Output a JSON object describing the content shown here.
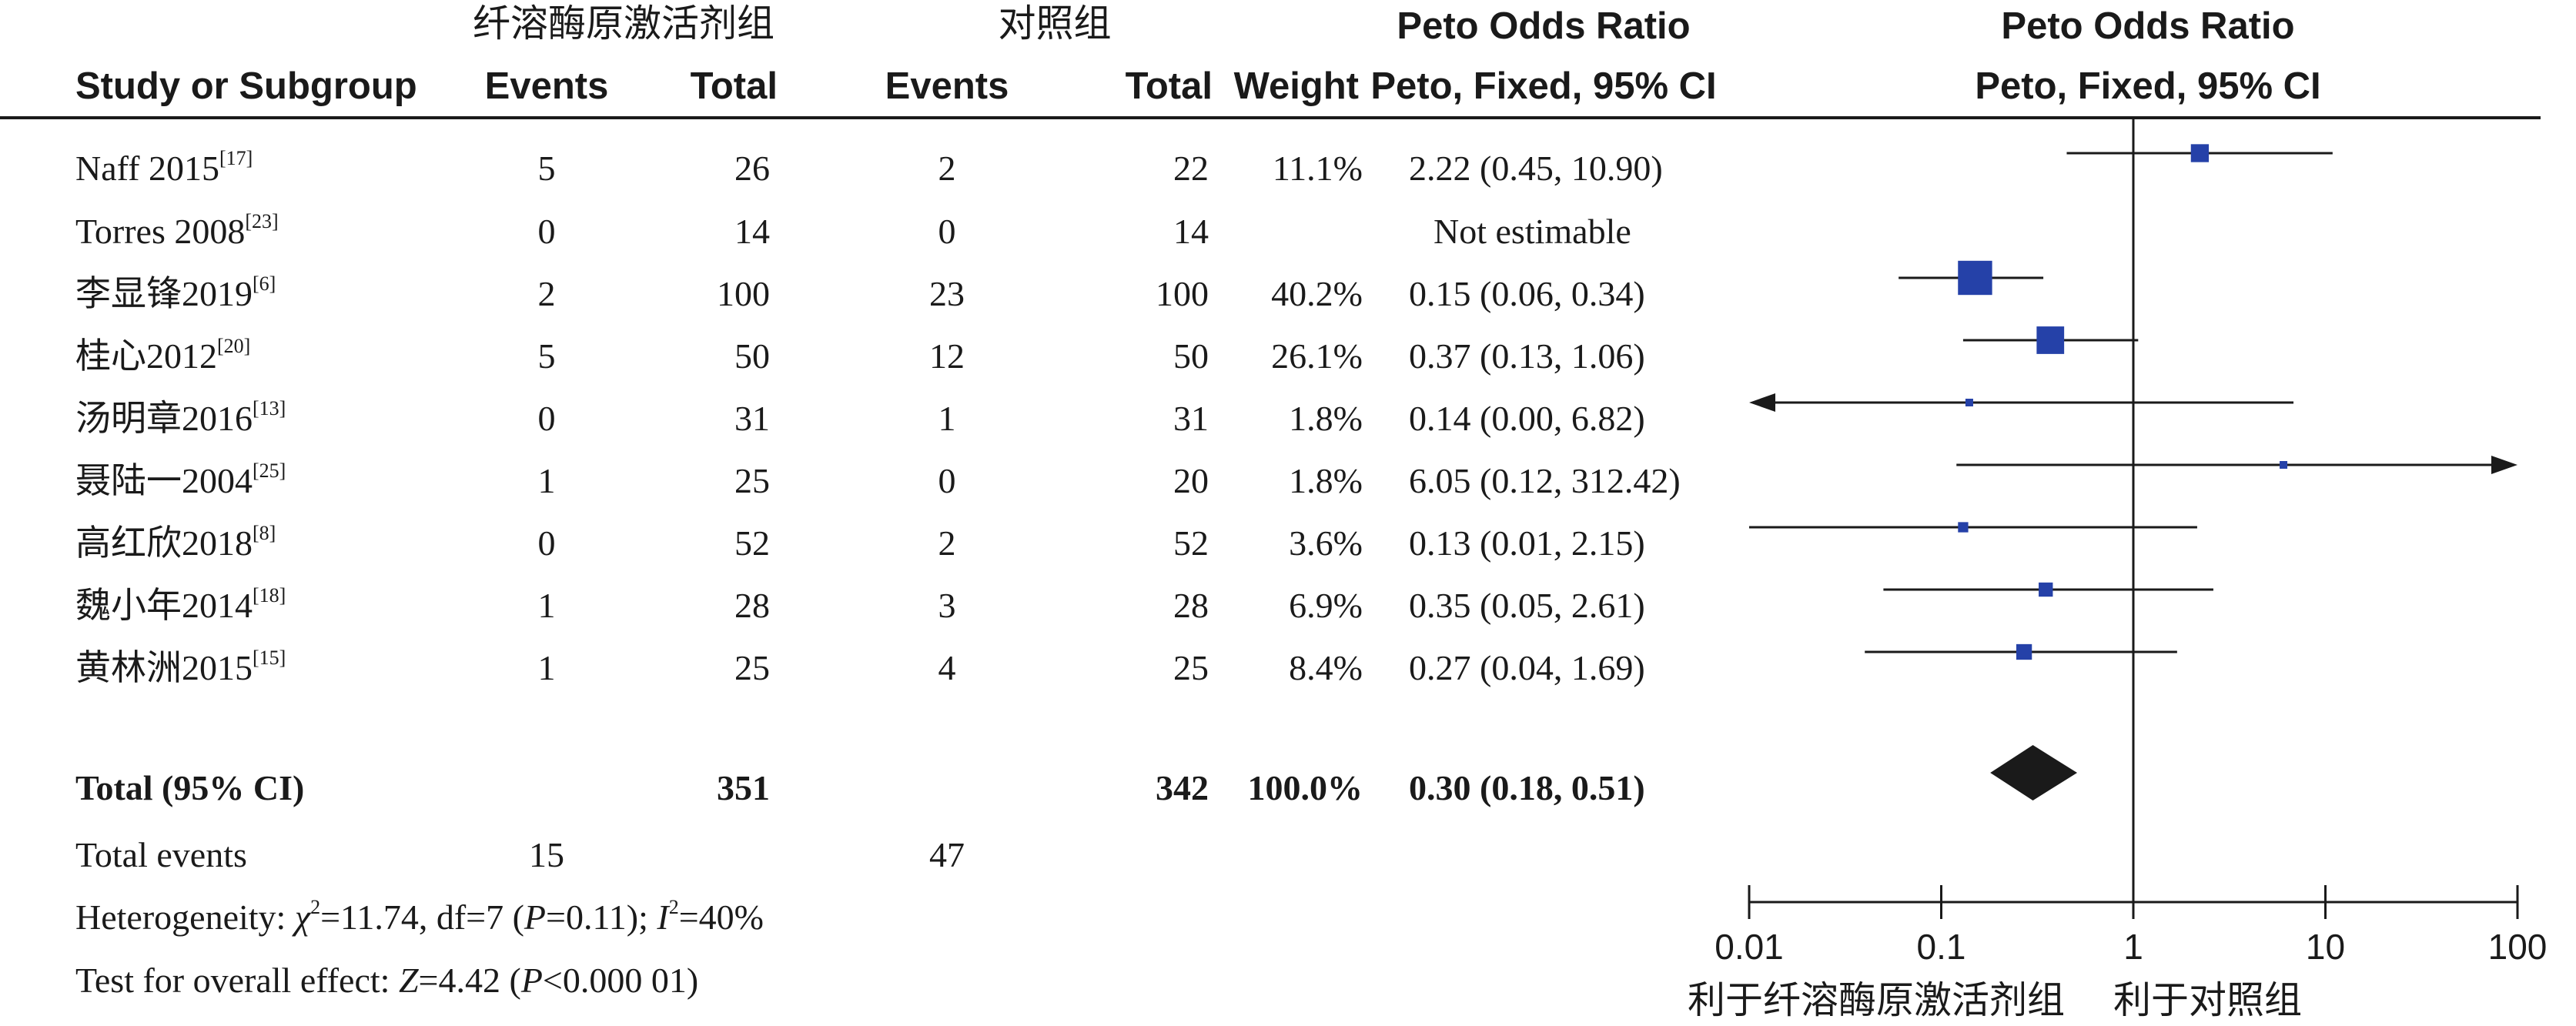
{
  "headers": {
    "group_exp": "纤溶酶原激活剂组",
    "group_ctrl": "对照组",
    "study": "Study or Subgroup",
    "events_exp": "Events",
    "total_exp": "Total",
    "events_ctrl": "Events",
    "total_ctrl": "Total",
    "weight": "Weight",
    "or_title": "Peto Odds Ratio",
    "or_sub": "Peto, Fixed, 95% CI",
    "plot_title": "Peto Odds Ratio",
    "plot_sub": "Peto, Fixed, 95% CI"
  },
  "studies": [
    {
      "name": "Naff 2015",
      "ref": "[17]",
      "e1": "5",
      "t1": "26",
      "e2": "2",
      "t2": "22",
      "weight": "11.1%",
      "ci_text": "2.22 (0.45, 10.90)"
    },
    {
      "name": "Torres 2008",
      "ref": "[23]",
      "e1": "0",
      "t1": "14",
      "e2": "0",
      "t2": "14",
      "weight": "",
      "ci_text": "Not estimable"
    },
    {
      "name": "李显锋2019",
      "ref": "[6]",
      "e1": "2",
      "t1": "100",
      "e2": "23",
      "t2": "100",
      "weight": "40.2%",
      "ci_text": "0.15 (0.06, 0.34)"
    },
    {
      "name": "桂心2012",
      "ref": "[20]",
      "e1": "5",
      "t1": "50",
      "e2": "12",
      "t2": "50",
      "weight": "26.1%",
      "ci_text": "0.37 (0.13, 1.06)"
    },
    {
      "name": "汤明章2016",
      "ref": "[13]",
      "e1": "0",
      "t1": "31",
      "e2": "1",
      "t2": "31",
      "weight": "1.8%",
      "ci_text": "0.14 (0.00, 6.82)"
    },
    {
      "name": "聂陆一2004",
      "ref": "[25]",
      "e1": "1",
      "t1": "25",
      "e2": "0",
      "t2": "20",
      "weight": "1.8%",
      "ci_text": "6.05 (0.12, 312.42)"
    },
    {
      "name": "高红欣2018",
      "ref": "[8]",
      "e1": "0",
      "t1": "52",
      "e2": "2",
      "t2": "52",
      "weight": "3.6%",
      "ci_text": "0.13 (0.01, 2.15)"
    },
    {
      "name": "魏小年2014",
      "ref": "[18]",
      "e1": "1",
      "t1": "28",
      "e2": "3",
      "t2": "28",
      "weight": "6.9%",
      "ci_text": "0.35 (0.05, 2.61)"
    },
    {
      "name": "黄林洲2015",
      "ref": "[15]",
      "e1": "1",
      "t1": "25",
      "e2": "4",
      "t2": "25",
      "weight": "8.4%",
      "ci_text": "0.27 (0.04, 1.69)"
    }
  ],
  "total": {
    "label": "Total (95% CI)",
    "t1": "351",
    "t2": "342",
    "weight": "100.0%",
    "ci_text": "0.30 (0.18, 0.51)"
  },
  "total_events": {
    "label": "Total events",
    "e1": "15",
    "e2": "47"
  },
  "heterogeneity": {
    "prefix": "Heterogeneity: ",
    "chi": "χ",
    "chi_sup": "2",
    "stats": "=11.74, df=7 (",
    "p": "P",
    "p_val": "=0.11); ",
    "i": "I",
    "i_sup": "2",
    "i_val": "=40%"
  },
  "overall": {
    "prefix": "Test for overall effect: ",
    "z": "Z",
    "z_val": "=4.42 (",
    "p": "P",
    "p_val": "<0.000 01)"
  },
  "axis": {
    "favours_left": "利于纤溶酶原激活剂组",
    "favours_right": "利于对照组"
  },
  "colors": {
    "marker": "#2541a8",
    "line": "#1a1a1a",
    "text": "#1a1a1a"
  },
  "chart_data": {
    "type": "forest",
    "xscale": "log",
    "xlim": [
      0.01,
      100
    ],
    "xticks": [
      0.01,
      0.1,
      1,
      10,
      100
    ],
    "xtick_labels": [
      "0.01",
      "0.1",
      "1",
      "10",
      "100"
    ],
    "null_line": 1,
    "studies": [
      {
        "name": "Naff 2015",
        "or": 2.22,
        "lower": 0.45,
        "upper": 10.9,
        "weight": 11.1
      },
      {
        "name": "Torres 2008",
        "or": null,
        "lower": null,
        "upper": null,
        "weight": null
      },
      {
        "name": "李显锋2019",
        "or": 0.15,
        "lower": 0.06,
        "upper": 0.34,
        "weight": 40.2
      },
      {
        "name": "桂心2012",
        "or": 0.37,
        "lower": 0.13,
        "upper": 1.06,
        "weight": 26.1
      },
      {
        "name": "汤明章2016",
        "or": 0.14,
        "lower": 0.0,
        "upper": 6.82,
        "weight": 1.8
      },
      {
        "name": "聂陆一2004",
        "or": 6.05,
        "lower": 0.12,
        "upper": 312.42,
        "weight": 1.8
      },
      {
        "name": "高红欣2018",
        "or": 0.13,
        "lower": 0.01,
        "upper": 2.15,
        "weight": 3.6
      },
      {
        "name": "魏小年2014",
        "or": 0.35,
        "lower": 0.05,
        "upper": 2.61,
        "weight": 6.9
      },
      {
        "name": "黄林洲2015",
        "or": 0.27,
        "lower": 0.04,
        "upper": 1.69,
        "weight": 8.4
      }
    ],
    "pooled": {
      "or": 0.3,
      "lower": 0.18,
      "upper": 0.51
    }
  }
}
